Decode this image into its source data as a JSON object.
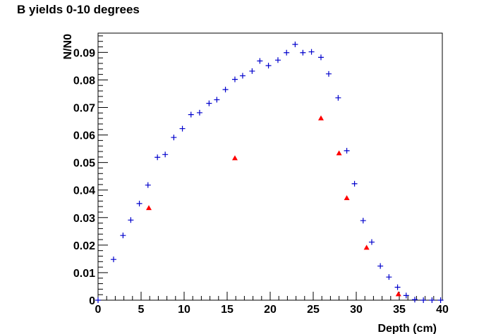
{
  "chart_data": {
    "type": "scatter",
    "title": "B yields 0-10 degrees",
    "xlabel": "Depth (cm)",
    "ylabel": "N/N0",
    "xlim": [
      0,
      40
    ],
    "ylim": [
      0,
      0.097
    ],
    "x_ticks": [
      0,
      5,
      10,
      15,
      20,
      25,
      30,
      35,
      40
    ],
    "x_tick_labels": [
      "0",
      "5",
      "10",
      "15",
      "20",
      "25",
      "30",
      "35",
      "40"
    ],
    "y_ticks": [
      0,
      0.01,
      0.02,
      0.03,
      0.04,
      0.05,
      0.06,
      0.07,
      0.08,
      0.09
    ],
    "y_tick_labels": [
      "0",
      "0.01",
      "0.02",
      "0.03",
      "0.04",
      "0.05",
      "0.06",
      "0.07",
      "0.08",
      "0.09"
    ],
    "grid": false,
    "series": [
      {
        "marker": "cross",
        "color": "#0000cc",
        "points": [
          [
            0,
            0
          ],
          [
            1.8,
            0.0148
          ],
          [
            2.9,
            0.0235
          ],
          [
            3.8,
            0.0291
          ],
          [
            4.8,
            0.0351
          ],
          [
            5.8,
            0.0418
          ],
          [
            6.9,
            0.0519
          ],
          [
            7.8,
            0.0529
          ],
          [
            8.8,
            0.0591
          ],
          [
            9.8,
            0.0623
          ],
          [
            10.8,
            0.0674
          ],
          [
            11.8,
            0.0681
          ],
          [
            12.9,
            0.0715
          ],
          [
            13.8,
            0.0728
          ],
          [
            14.8,
            0.0765
          ],
          [
            15.9,
            0.0802
          ],
          [
            16.8,
            0.0815
          ],
          [
            17.9,
            0.0832
          ],
          [
            18.8,
            0.0869
          ],
          [
            19.8,
            0.0852
          ],
          [
            20.9,
            0.0872
          ],
          [
            21.9,
            0.0899
          ],
          [
            22.9,
            0.0929
          ],
          [
            23.8,
            0.0899
          ],
          [
            24.8,
            0.0902
          ],
          [
            25.9,
            0.0882
          ],
          [
            26.8,
            0.0822
          ],
          [
            27.9,
            0.0735
          ],
          [
            28.9,
            0.0543
          ],
          [
            29.8,
            0.0423
          ],
          [
            30.8,
            0.0289
          ],
          [
            31.8,
            0.0211
          ],
          [
            32.8,
            0.0124
          ],
          [
            33.8,
            0.0084
          ],
          [
            34.8,
            0.0047
          ],
          [
            35.8,
            0.0017
          ],
          [
            36.8,
            0.0002
          ],
          [
            37.8,
            0
          ],
          [
            38.8,
            0
          ],
          [
            39.8,
            0
          ]
        ]
      },
      {
        "marker": "triangle",
        "color": "#ff0000",
        "points": [
          [
            5.9,
            0.0335
          ],
          [
            15.9,
            0.0516
          ],
          [
            25.9,
            0.0661
          ],
          [
            28.0,
            0.0534
          ],
          [
            28.9,
            0.0371
          ],
          [
            31.2,
            0.0191
          ],
          [
            34.9,
            0.0022
          ]
        ]
      }
    ]
  }
}
